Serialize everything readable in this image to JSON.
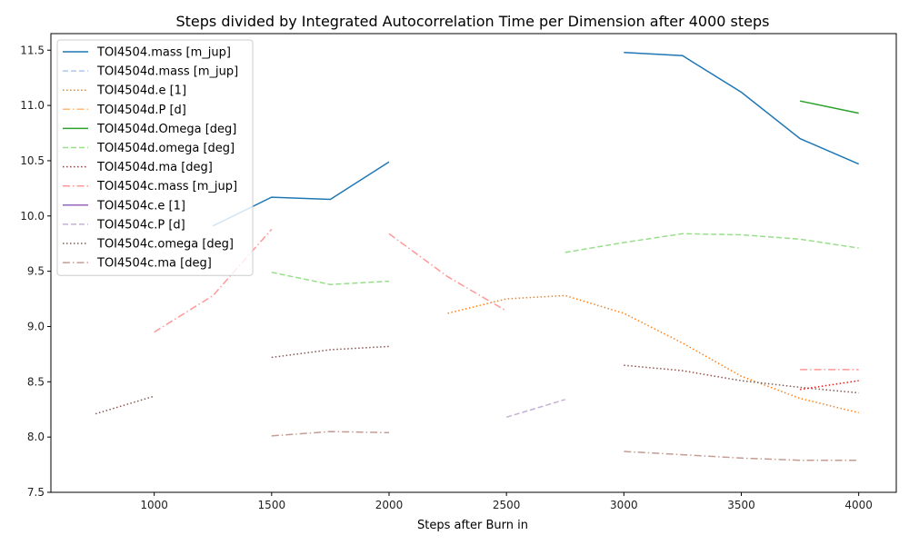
{
  "chart_data": {
    "type": "line",
    "title": "Steps divided by Integrated Autocorrelation Time per Dimension after 4000 steps",
    "xlabel": "Steps after Burn in",
    "ylabel": "",
    "xlim": [
      560,
      4160
    ],
    "ylim": [
      7.5,
      11.65
    ],
    "xticks": [
      1000,
      1500,
      2000,
      2500,
      3000,
      3500,
      4000
    ],
    "xtick_labels": [
      "1000",
      "1500",
      "2000",
      "2500",
      "3000",
      "3500",
      "4000"
    ],
    "yticks": [
      7.5,
      8.0,
      8.5,
      9.0,
      9.5,
      10.0,
      10.5,
      11.0,
      11.5
    ],
    "ytick_labels": [
      "7.5",
      "8.0",
      "8.5",
      "9.0",
      "9.5",
      "10.0",
      "10.5",
      "11.0",
      "11.5"
    ],
    "grid": false,
    "legend_position": "top-left",
    "series": [
      {
        "name": "TOI4504.mass [m_jup]",
        "color": "#1f77b4",
        "dash": "solid",
        "segments": [
          [
            [
              1250,
              9.91
            ],
            [
              1500,
              10.17
            ],
            [
              1750,
              10.15
            ],
            [
              2000,
              10.49
            ]
          ],
          [
            [
              3000,
              11.48
            ],
            [
              3250,
              11.45
            ],
            [
              3500,
              11.12
            ],
            [
              3750,
              10.7
            ],
            [
              4000,
              10.47
            ]
          ]
        ]
      },
      {
        "name": "TOI4504d.mass [m_jup]",
        "color": "#aec7e8",
        "dash": "dashed",
        "segments": []
      },
      {
        "name": "TOI4504d.e [1]",
        "color": "#ff7f0e",
        "dash": "dotted",
        "segments": [
          [
            [
              2250,
              9.12
            ],
            [
              2500,
              9.25
            ],
            [
              2750,
              9.28
            ],
            [
              3000,
              9.12
            ],
            [
              3250,
              8.85
            ],
            [
              3500,
              8.55
            ],
            [
              3750,
              8.35
            ],
            [
              4000,
              8.22
            ]
          ]
        ]
      },
      {
        "name": "TOI4504d.P [d]",
        "color": "#ffbb78",
        "dash": "dashdot",
        "segments": []
      },
      {
        "name": "TOI4504d.Omega [deg]",
        "color": "#2ca02c",
        "dash": "solid",
        "segments": [
          [
            [
              3750,
              11.04
            ],
            [
              4000,
              10.93
            ]
          ]
        ]
      },
      {
        "name": "TOI4504d.omega [deg]",
        "color": "#98df8a",
        "dash": "dashed",
        "segments": [
          [
            [
              1500,
              9.49
            ],
            [
              1750,
              9.38
            ],
            [
              2000,
              9.41
            ]
          ],
          [
            [
              2750,
              9.67
            ],
            [
              3000,
              9.76
            ],
            [
              3250,
              9.84
            ],
            [
              3500,
              9.83
            ],
            [
              3750,
              9.79
            ],
            [
              4000,
              9.71
            ]
          ]
        ]
      },
      {
        "name": "TOI4504d.ma [deg]",
        "color": "#d62728",
        "dash": "dotted",
        "segments": [
          [
            [
              3750,
              8.43
            ],
            [
              4000,
              8.51
            ]
          ]
        ]
      },
      {
        "name": "TOI4504c.mass [m_jup]",
        "color": "#ff9896",
        "dash": "dashdot",
        "segments": [
          [
            [
              1000,
              8.95
            ],
            [
              1250,
              9.28
            ],
            [
              1500,
              9.88
            ]
          ],
          [
            [
              2000,
              9.84
            ],
            [
              2250,
              9.45
            ],
            [
              2500,
              9.14
            ]
          ],
          [
            [
              3750,
              8.61
            ],
            [
              4000,
              8.61
            ]
          ]
        ]
      },
      {
        "name": "TOI4504c.e [1]",
        "color": "#9467bd",
        "dash": "solid",
        "segments": []
      },
      {
        "name": "TOI4504c.P [d]",
        "color": "#c5b0d5",
        "dash": "dashed",
        "segments": [
          [
            [
              2500,
              8.18
            ],
            [
              2750,
              8.34
            ]
          ]
        ]
      },
      {
        "name": "TOI4504c.omega [deg]",
        "color": "#8c564b",
        "dash": "dotted",
        "segments": [
          [
            [
              750,
              8.21
            ],
            [
              1000,
              8.37
            ]
          ],
          [
            [
              1500,
              8.72
            ],
            [
              1750,
              8.79
            ],
            [
              2000,
              8.82
            ]
          ],
          [
            [
              3000,
              8.65
            ],
            [
              3250,
              8.6
            ],
            [
              3500,
              8.51
            ],
            [
              3750,
              8.45
            ],
            [
              4000,
              8.4
            ]
          ]
        ]
      },
      {
        "name": "TOI4504c.ma [deg]",
        "color": "#c49c94",
        "dash": "dashdot",
        "segments": [
          [
            [
              1500,
              8.01
            ],
            [
              1750,
              8.05
            ],
            [
              2000,
              8.04
            ]
          ],
          [
            [
              3000,
              7.87
            ],
            [
              3250,
              7.84
            ],
            [
              3500,
              7.81
            ],
            [
              3750,
              7.79
            ],
            [
              4000,
              7.79
            ]
          ]
        ]
      }
    ]
  }
}
